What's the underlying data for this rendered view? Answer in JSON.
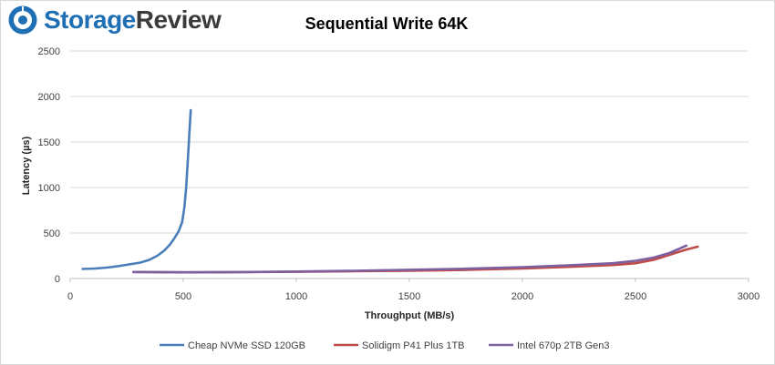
{
  "brand": {
    "name_part1": "Storage",
    "name_part2": "Review",
    "logo_icon": "storagereview-logo-icon",
    "primary_color": "#1f6fb5",
    "secondary_color": "#3b3b3b"
  },
  "chart_data": {
    "type": "line",
    "title": "Sequential Write 64K",
    "xlabel": "Throughput (MB/s)",
    "ylabel": "Latency (µs)",
    "xlim": [
      0,
      3000
    ],
    "ylim": [
      0,
      2500
    ],
    "xticks": [
      0,
      500,
      1000,
      1500,
      2000,
      2500,
      3000
    ],
    "yticks": [
      0,
      500,
      1000,
      1500,
      2000,
      2500
    ],
    "grid": true,
    "legend_position": "bottom",
    "series": [
      {
        "name": "Cheap NVMe SSD 120GB",
        "color": "#4a7ebb",
        "points": [
          [
            55,
            105
          ],
          [
            110,
            110
          ],
          [
            160,
            120
          ],
          [
            210,
            135
          ],
          [
            260,
            155
          ],
          [
            310,
            175
          ],
          [
            350,
            205
          ],
          [
            385,
            250
          ],
          [
            415,
            305
          ],
          [
            440,
            370
          ],
          [
            460,
            440
          ],
          [
            480,
            520
          ],
          [
            495,
            620
          ],
          [
            505,
            780
          ],
          [
            513,
            1000
          ],
          [
            520,
            1300
          ],
          [
            527,
            1600
          ],
          [
            533,
            1850
          ]
        ]
      },
      {
        "name": "Solidigm P41 Plus 1TB",
        "color": "#be4b48",
        "points": [
          [
            280,
            72
          ],
          [
            500,
            68
          ],
          [
            750,
            70
          ],
          [
            1000,
            74
          ],
          [
            1250,
            80
          ],
          [
            1500,
            86
          ],
          [
            1750,
            95
          ],
          [
            2000,
            110
          ],
          [
            2200,
            128
          ],
          [
            2400,
            148
          ],
          [
            2500,
            168
          ],
          [
            2580,
            205
          ],
          [
            2650,
            260
          ],
          [
            2720,
            315
          ],
          [
            2775,
            350
          ]
        ]
      },
      {
        "name": "Intel 670p 2TB Gen3",
        "color": "#7d60a0",
        "points": [
          [
            280,
            72
          ],
          [
            500,
            68
          ],
          [
            750,
            71
          ],
          [
            1000,
            77
          ],
          [
            1250,
            85
          ],
          [
            1500,
            96
          ],
          [
            1750,
            108
          ],
          [
            2000,
            125
          ],
          [
            2200,
            145
          ],
          [
            2400,
            168
          ],
          [
            2500,
            195
          ],
          [
            2580,
            230
          ],
          [
            2650,
            280
          ],
          [
            2725,
            362
          ]
        ]
      }
    ]
  }
}
